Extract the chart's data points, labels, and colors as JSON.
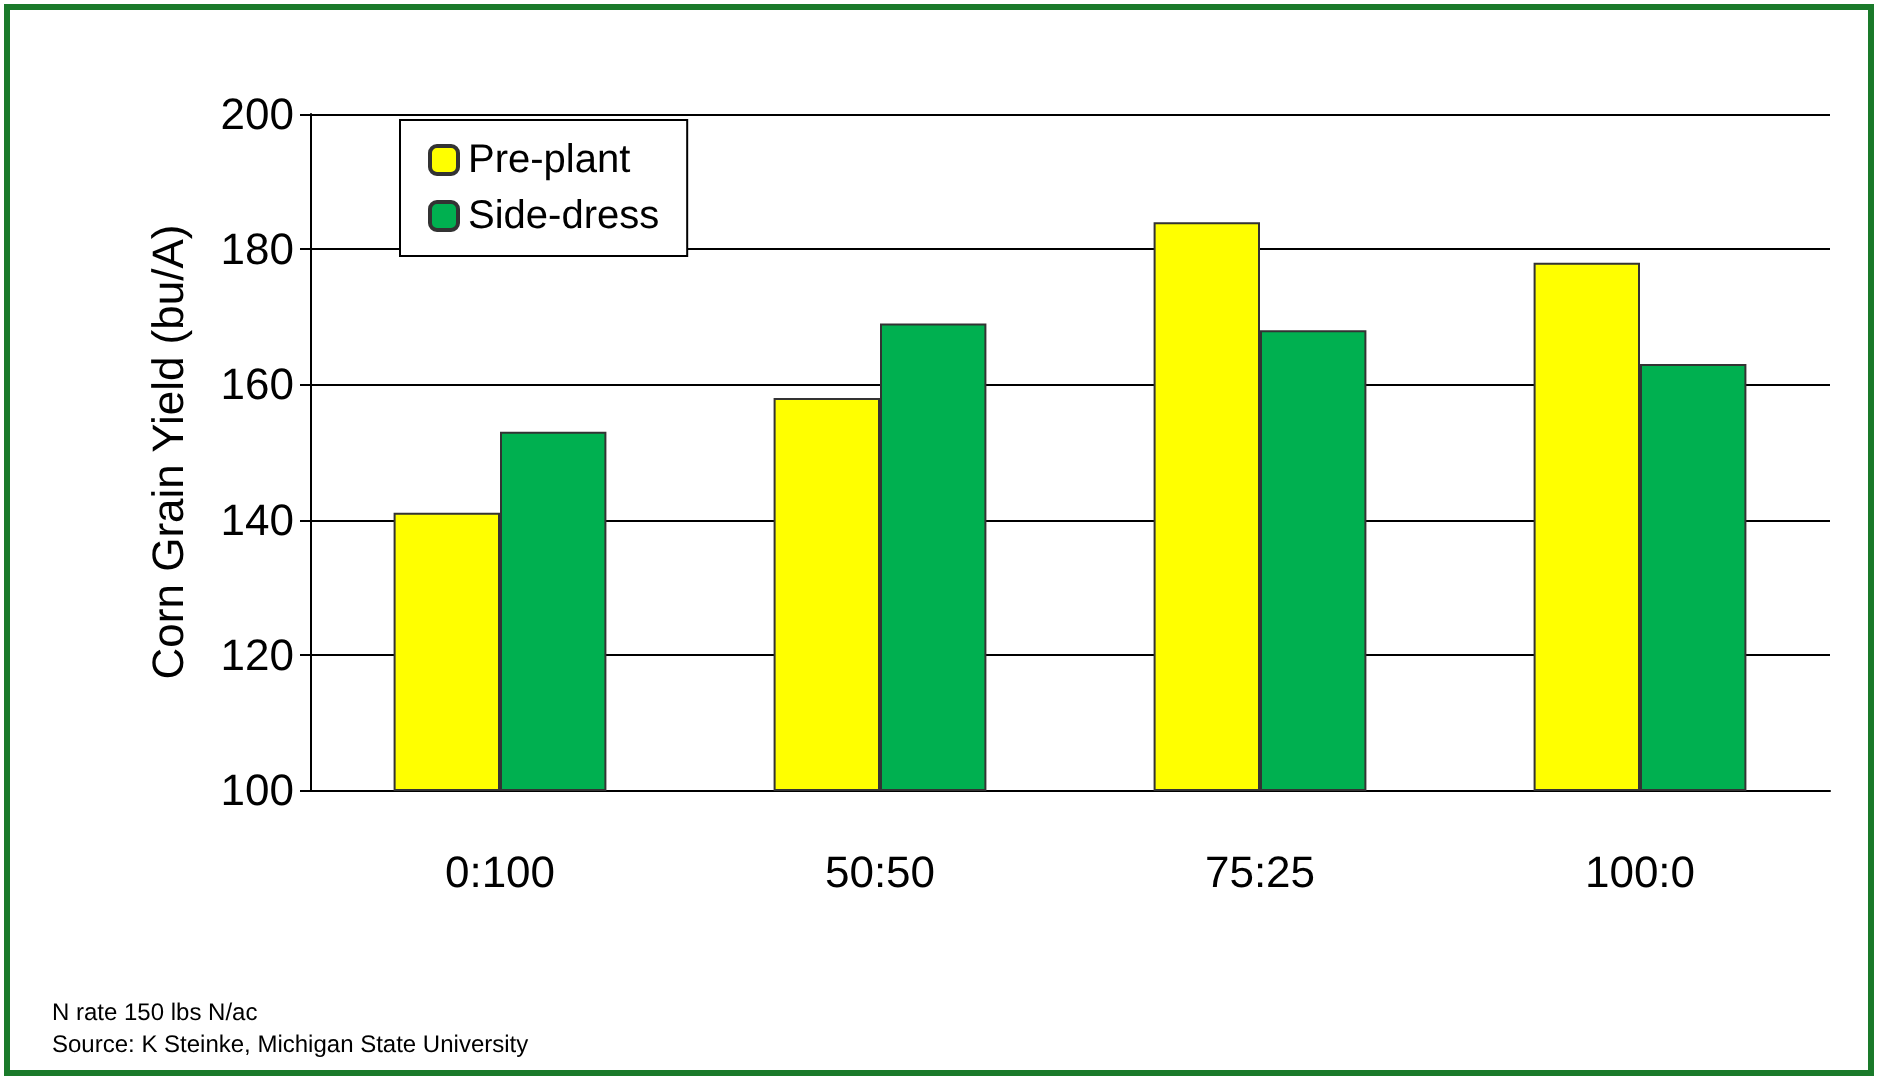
{
  "chart_data": {
    "type": "bar",
    "ylabel": "Corn Grain Yield (bu/A)",
    "categories": [
      "0:100",
      "50:50",
      "75:25",
      "100:0"
    ],
    "series": [
      {
        "name": "Pre-plant",
        "color": "#ffff00",
        "values": [
          141,
          158,
          184,
          178
        ]
      },
      {
        "name": "Side-dress",
        "color": "#00b050",
        "values": [
          153,
          169,
          168,
          163
        ]
      }
    ],
    "ylim": [
      100,
      200
    ],
    "yticks": [
      100,
      120,
      140,
      160,
      180,
      200
    ],
    "grid": "y",
    "legend": "top left",
    "annotations": [
      "N rate 150 lbs N/ac",
      "Source: K Steinke, Michigan State University"
    ]
  }
}
